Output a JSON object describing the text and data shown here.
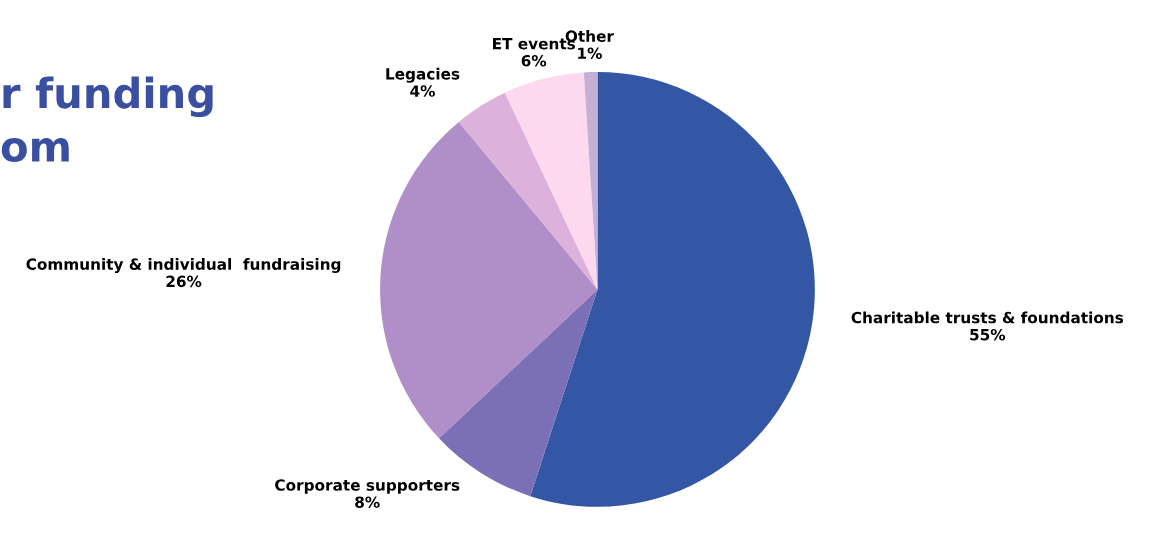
{
  "chart_data": {
    "type": "pie",
    "title": "r funding\nom",
    "categories": [
      "Charitable trusts & foundations",
      "Corporate supporters",
      "Community & individual  fundraising",
      "Legacies",
      "ET events",
      "Other"
    ],
    "values": [
      55,
      8,
      26,
      4,
      6,
      1
    ],
    "colors": [
      "#3357a5",
      "#7b6fb5",
      "#b08ec7",
      "#dcb2dc",
      "#fdd9ef",
      "#c4b0d4"
    ],
    "value_labels": [
      "55%",
      "8%",
      "26%",
      "4%",
      "6%",
      "1%"
    ]
  }
}
